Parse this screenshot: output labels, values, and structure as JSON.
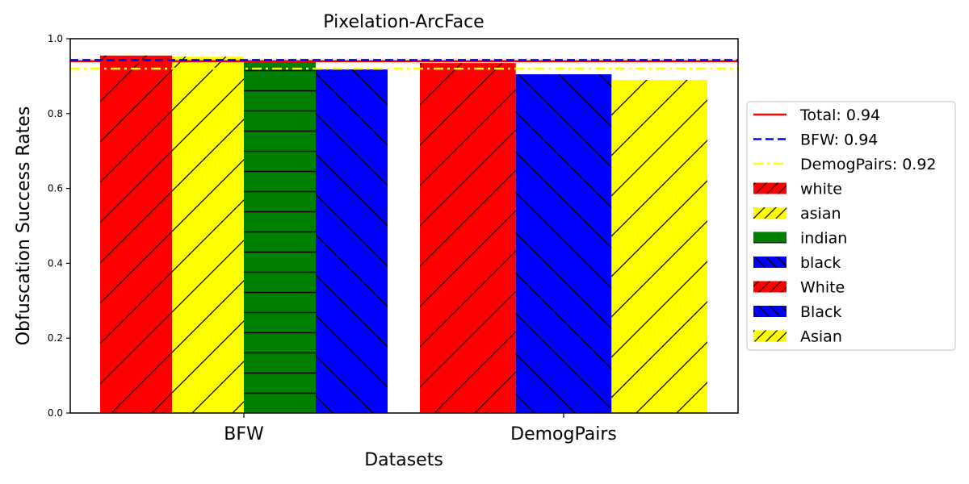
{
  "chart_data": {
    "type": "bar",
    "title": "Pixelation-ArcFace",
    "xlabel": "Datasets",
    "ylabel": "Obfuscation Success Rates",
    "ylim": [
      0,
      1.0
    ],
    "yticks": [
      "0.0",
      "0.2",
      "0.4",
      "0.6",
      "0.8",
      "1.0"
    ],
    "categories": [
      "BFW",
      "DemogPairs"
    ],
    "groups": [
      {
        "category": "BFW",
        "bars": [
          {
            "name": "white",
            "value": 0.955,
            "color": "#ff0000",
            "hatch": "/"
          },
          {
            "name": "asian",
            "value": 0.952,
            "color": "#ffff00",
            "hatch": "/"
          },
          {
            "name": "indian",
            "value": 0.942,
            "color": "#008000",
            "hatch": "-"
          },
          {
            "name": "black",
            "value": 0.918,
            "color": "#0000ff",
            "hatch": "\\"
          }
        ]
      },
      {
        "category": "DemogPairs",
        "bars": [
          {
            "name": "White",
            "value": 0.935,
            "color": "#ff0000",
            "hatch": "/"
          },
          {
            "name": "Black",
            "value": 0.905,
            "color": "#0000ff",
            "hatch": "\\"
          },
          {
            "name": "Asian",
            "value": 0.89,
            "color": "#ffff00",
            "hatch": "/"
          }
        ]
      }
    ],
    "reference_lines": [
      {
        "label": "Total: 0.94",
        "value": 0.94,
        "color": "#ff0000",
        "style": "solid"
      },
      {
        "label": "BFW: 0.94",
        "value": 0.943,
        "color": "#0000ff",
        "style": "dashed"
      },
      {
        "label": "DemogPairs: 0.92",
        "value": 0.92,
        "color": "#ffff00",
        "style": "dashdot"
      }
    ],
    "legend": {
      "placement": "right",
      "entries": [
        {
          "label": "Total: 0.94",
          "kind": "line",
          "color": "#ff0000",
          "style": "solid"
        },
        {
          "label": "BFW: 0.94",
          "kind": "line",
          "color": "#0000ff",
          "style": "dashed"
        },
        {
          "label": "DemogPairs: 0.92",
          "kind": "line",
          "color": "#ffff00",
          "style": "dashdot"
        },
        {
          "label": "white",
          "kind": "patch",
          "color": "#ff0000",
          "hatch": "/"
        },
        {
          "label": "asian",
          "kind": "patch",
          "color": "#ffff00",
          "hatch": "/"
        },
        {
          "label": "indian",
          "kind": "patch",
          "color": "#008000",
          "hatch": "-"
        },
        {
          "label": "black",
          "kind": "patch",
          "color": "#0000ff",
          "hatch": "\\"
        },
        {
          "label": "White",
          "kind": "patch",
          "color": "#ff0000",
          "hatch": "/"
        },
        {
          "label": "Black",
          "kind": "patch",
          "color": "#0000ff",
          "hatch": "\\"
        },
        {
          "label": "Asian",
          "kind": "patch",
          "color": "#ffff00",
          "hatch": "/"
        }
      ]
    },
    "grid": false
  }
}
